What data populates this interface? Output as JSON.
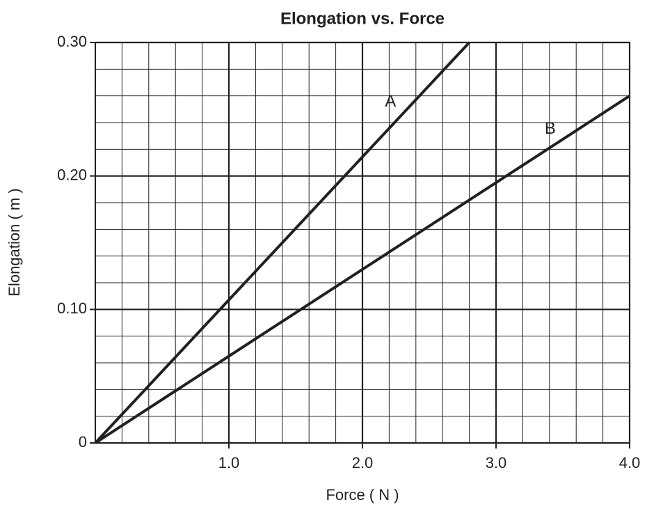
{
  "chart_data": {
    "type": "line",
    "title": "Elongation vs. Force",
    "xlabel": "Force ( N )",
    "ylabel": "Elongation ( m )",
    "series": [
      {
        "name": "A",
        "color": "#231f20",
        "x": [
          0,
          2.8
        ],
        "values": [
          0,
          0.3
        ]
      },
      {
        "name": "B",
        "color": "#231f20",
        "x": [
          0,
          4.0
        ],
        "values": [
          0,
          0.26
        ]
      }
    ],
    "xlim": [
      0,
      4.0
    ],
    "ylim": [
      0,
      0.3
    ],
    "xticks": [
      {
        "value": 1,
        "label": "1.0"
      },
      {
        "value": 2,
        "label": "2.0"
      },
      {
        "value": 3,
        "label": "3.0"
      },
      {
        "value": 4,
        "label": "4.0"
      }
    ],
    "yticks": [
      0,
      {
        "value": 0.1,
        "label": "0.10"
      },
      {
        "value": 0.2,
        "label": "0.20"
      },
      {
        "value": 0.3,
        "label": "0.30"
      }
    ],
    "x_minor_ticks": [
      0,
      0.2,
      0.4,
      0.6,
      0.8,
      1.0,
      1.2,
      1.4,
      1.6,
      1.8,
      2.0,
      2.2,
      2.4,
      2.6,
      2.8,
      3.0,
      3.2,
      3.4,
      3.6,
      3.8,
      4.0
    ],
    "y_minor_ticks": [
      0,
      0.02,
      0.04,
      0.06,
      0.08,
      0.1,
      0.12,
      0.14,
      0.16,
      0.18,
      0.2,
      0.22,
      0.24,
      0.26,
      0.28,
      0.3
    ],
    "grid": true
  }
}
